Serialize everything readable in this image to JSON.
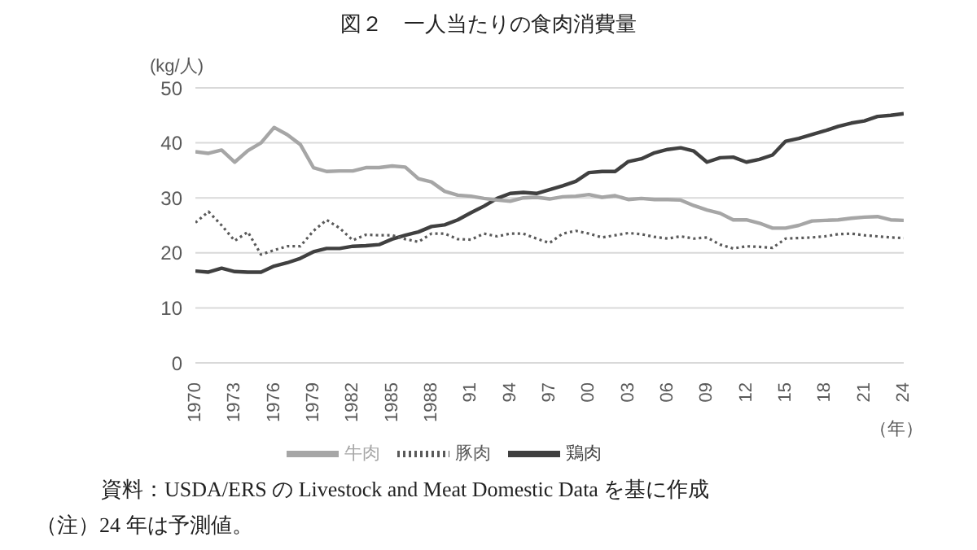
{
  "chart_data": {
    "type": "line",
    "title": "図２　一人当たりの食肉消費量",
    "ylabel": "(kg/人)",
    "xlabel": "（年）",
    "x": [
      1970,
      1971,
      1972,
      1973,
      1974,
      1975,
      1976,
      1977,
      1978,
      1979,
      1980,
      1981,
      1982,
      1983,
      1984,
      1985,
      1986,
      1987,
      1988,
      1989,
      1990,
      1991,
      1992,
      1993,
      1994,
      1995,
      1996,
      1997,
      1998,
      1999,
      2000,
      2001,
      2002,
      2003,
      2004,
      2005,
      2006,
      2007,
      2008,
      2009,
      2010,
      2011,
      2012,
      2013,
      2014,
      2015,
      2016,
      2017,
      2018,
      2019,
      2020,
      2021,
      2022,
      2023,
      2024
    ],
    "series": [
      {
        "name": "鶏肉",
        "color": "#404040",
        "line_style": "solid",
        "values": [
          16.7,
          16.5,
          17.2,
          16.6,
          16.5,
          16.5,
          17.6,
          18.2,
          19.0,
          20.2,
          20.8,
          20.8,
          21.2,
          21.3,
          21.5,
          22.5,
          23.2,
          23.8,
          24.8,
          25.1,
          26.0,
          27.3,
          28.5,
          29.9,
          30.8,
          31.0,
          30.8,
          31.5,
          32.2,
          33.0,
          34.6,
          34.8,
          34.8,
          36.6,
          37.1,
          38.2,
          38.8,
          39.1,
          38.5,
          36.5,
          37.3,
          37.4,
          36.5,
          37.0,
          37.8,
          40.3,
          40.8,
          41.5,
          42.2,
          43.0,
          43.6,
          44.0,
          44.8,
          45.0,
          45.3
        ]
      },
      {
        "name": "豚肉",
        "color": "#595959",
        "line_style": "dotted",
        "values": [
          25.5,
          27.5,
          25.0,
          22.2,
          23.8,
          19.7,
          20.5,
          21.2,
          21.2,
          24.0,
          26.0,
          24.5,
          22.3,
          23.3,
          23.2,
          23.2,
          22.5,
          22.0,
          23.5,
          23.5,
          22.5,
          22.4,
          23.5,
          23.0,
          23.5,
          23.5,
          22.6,
          21.8,
          23.5,
          24.0,
          23.5,
          22.8,
          23.2,
          23.6,
          23.4,
          22.9,
          22.6,
          23.0,
          22.6,
          22.8,
          21.5,
          20.8,
          21.2,
          21.1,
          20.9,
          22.6,
          22.7,
          22.8,
          23.0,
          23.4,
          23.5,
          23.2,
          23.0,
          22.8,
          22.7
        ]
      },
      {
        "name": "牛肉",
        "color": "#a6a6a6",
        "line_style": "solid",
        "values": [
          38.4,
          38.1,
          38.7,
          36.5,
          38.6,
          40.0,
          42.8,
          41.5,
          39.7,
          35.5,
          34.8,
          34.9,
          34.9,
          35.5,
          35.5,
          35.8,
          35.6,
          33.5,
          32.9,
          31.2,
          30.5,
          30.3,
          29.9,
          29.6,
          29.4,
          30.0,
          30.1,
          29.8,
          30.2,
          30.3,
          30.6,
          30.1,
          30.4,
          29.7,
          29.9,
          29.7,
          29.7,
          29.6,
          28.6,
          27.8,
          27.2,
          26.0,
          26.0,
          25.4,
          24.5,
          24.5,
          25.0,
          25.8,
          25.9,
          26.0,
          26.3,
          26.5,
          26.6,
          26.0,
          25.9
        ]
      }
    ],
    "xlim": [
      1970,
      2024
    ],
    "xticks": [
      1970,
      1973,
      1976,
      1979,
      1982,
      1985,
      1988,
      {
        "value": 1991,
        "label": "91"
      },
      {
        "value": 1994,
        "label": "94"
      },
      {
        "value": 1997,
        "label": "97"
      },
      {
        "value": 2000,
        "label": "00"
      },
      {
        "value": 2003,
        "label": "03"
      },
      {
        "value": 2006,
        "label": "06"
      },
      {
        "value": 2009,
        "label": "09"
      },
      {
        "value": 2012,
        "label": "12"
      },
      {
        "value": 2015,
        "label": "15"
      },
      {
        "value": 2018,
        "label": "18"
      },
      {
        "value": 2021,
        "label": "21"
      },
      {
        "value": 2024,
        "label": "24"
      }
    ],
    "ylim": [
      0,
      50
    ],
    "yticks": [
      0,
      10,
      20,
      30,
      40,
      50
    ],
    "grid": "y",
    "legend": "bottom",
    "marker": "none",
    "annotations": [
      "資料：USDA/ERS の Livestock and Meat Domestic Data を基に作成",
      "（注）24 年は予測値。"
    ]
  }
}
